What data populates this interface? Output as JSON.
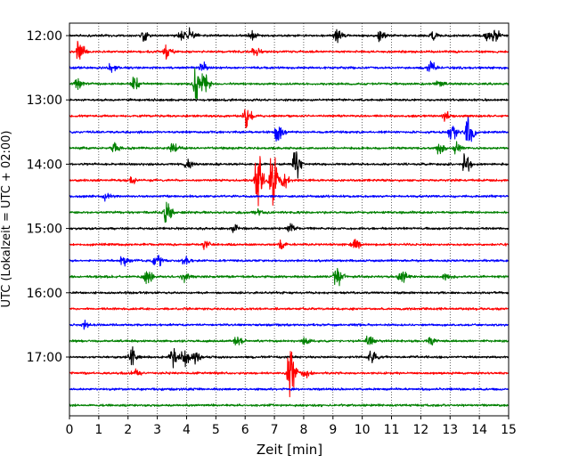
{
  "chart_data": {
    "type": "line",
    "title": "",
    "xlabel": "Zeit  [min]",
    "ylabel": "UTC (Lokalzeit = UTC + 02:00)",
    "xlim": [
      0,
      15
    ],
    "xticks": [
      "0",
      "1",
      "2",
      "3",
      "4",
      "5",
      "6",
      "7",
      "8",
      "9",
      "10",
      "11",
      "12",
      "13",
      "14",
      "15"
    ],
    "yticks": [
      {
        "label": "12:00",
        "row": 0
      },
      {
        "label": "13:00",
        "row": 4
      },
      {
        "label": "14:00",
        "row": 8
      },
      {
        "label": "15:00",
        "row": 12
      },
      {
        "label": "16:00",
        "row": 16
      },
      {
        "label": "17:00",
        "row": 20
      }
    ],
    "row_interval_min": 15,
    "grid": "vertical dotted lines at each minute",
    "color_cycle": [
      "#000000",
      "#ff0000",
      "#0000ff",
      "#008000"
    ],
    "rows": [
      {
        "start": "12:00",
        "color": "#000000",
        "events": [
          [
            2.5,
            0.5
          ],
          [
            3.8,
            0.4
          ],
          [
            4.1,
            0.4
          ],
          [
            6.2,
            0.4
          ],
          [
            9.1,
            0.6
          ],
          [
            10.6,
            0.4
          ],
          [
            12.4,
            0.4
          ],
          [
            14.2,
            0.4
          ],
          [
            14.5,
            0.5
          ]
        ]
      },
      {
        "start": "12:15",
        "color": "#ff0000",
        "events": [
          [
            0.3,
            0.9
          ],
          [
            3.3,
            0.6
          ],
          [
            6.3,
            0.4
          ]
        ]
      },
      {
        "start": "12:30",
        "color": "#0000ff",
        "events": [
          [
            1.4,
            0.4
          ],
          [
            4.5,
            0.4
          ],
          [
            12.3,
            0.5
          ]
        ]
      },
      {
        "start": "12:45",
        "color": "#008000",
        "events": [
          [
            0.2,
            0.4
          ],
          [
            2.2,
            0.6
          ],
          [
            4.3,
            1.3
          ],
          [
            4.6,
            0.8
          ],
          [
            12.6,
            0.3
          ]
        ]
      },
      {
        "start": "13:00",
        "color": "#000000",
        "events": []
      },
      {
        "start": "13:15",
        "color": "#ff0000",
        "events": [
          [
            6.0,
            1.0
          ],
          [
            12.8,
            0.4
          ]
        ]
      },
      {
        "start": "13:30",
        "color": "#0000ff",
        "events": [
          [
            7.1,
            1.0
          ],
          [
            13.0,
            1.0
          ],
          [
            13.6,
            1.5
          ]
        ]
      },
      {
        "start": "13:45",
        "color": "#008000",
        "events": [
          [
            1.5,
            0.4
          ],
          [
            3.5,
            0.4
          ],
          [
            12.6,
            0.5
          ],
          [
            13.2,
            0.4
          ]
        ]
      },
      {
        "start": "14:00",
        "color": "#000000",
        "events": [
          [
            4.0,
            0.4
          ],
          [
            7.7,
            1.2
          ],
          [
            13.5,
            0.8
          ]
        ]
      },
      {
        "start": "14:15",
        "color": "#ff0000",
        "events": [
          [
            6.4,
            2.4
          ],
          [
            6.9,
            2.2
          ],
          [
            7.3,
            0.6
          ],
          [
            2.1,
            0.3
          ]
        ]
      },
      {
        "start": "14:30",
        "color": "#0000ff",
        "events": [
          [
            1.2,
            0.3
          ]
        ]
      },
      {
        "start": "14:45",
        "color": "#008000",
        "events": [
          [
            3.3,
            0.9
          ],
          [
            6.4,
            0.3
          ]
        ]
      },
      {
        "start": "15:00",
        "color": "#000000",
        "events": [
          [
            5.6,
            0.3
          ],
          [
            7.5,
            0.3
          ]
        ]
      },
      {
        "start": "15:15",
        "color": "#ff0000",
        "events": [
          [
            4.6,
            0.3
          ],
          [
            7.2,
            0.4
          ],
          [
            9.7,
            0.5
          ]
        ]
      },
      {
        "start": "15:30",
        "color": "#0000ff",
        "events": [
          [
            1.8,
            0.4
          ],
          [
            2.9,
            0.3
          ],
          [
            3.0,
            0.3
          ],
          [
            3.9,
            0.4
          ]
        ]
      },
      {
        "start": "15:45",
        "color": "#008000",
        "events": [
          [
            2.6,
            0.6
          ],
          [
            3.9,
            0.3
          ],
          [
            9.1,
            1.0
          ],
          [
            11.3,
            0.7
          ],
          [
            12.8,
            0.3
          ]
        ]
      },
      {
        "start": "16:00",
        "color": "#000000",
        "events": []
      },
      {
        "start": "16:15",
        "color": "#ff0000",
        "events": []
      },
      {
        "start": "16:30",
        "color": "#0000ff",
        "events": [
          [
            0.5,
            0.3
          ]
        ]
      },
      {
        "start": "16:45",
        "color": "#008000",
        "events": [
          [
            5.7,
            0.4
          ],
          [
            8.0,
            0.3
          ],
          [
            10.2,
            0.5
          ],
          [
            12.3,
            0.3
          ]
        ]
      },
      {
        "start": "17:00",
        "color": "#000000",
        "events": [
          [
            2.1,
            0.8
          ],
          [
            3.5,
            1.0
          ],
          [
            3.9,
            0.8
          ],
          [
            4.3,
            0.4
          ],
          [
            10.3,
            0.5
          ]
        ]
      },
      {
        "start": "17:15",
        "color": "#ff0000",
        "events": [
          [
            7.5,
            1.9
          ],
          [
            2.2,
            0.3
          ],
          [
            8.0,
            0.3
          ]
        ]
      },
      {
        "start": "17:30",
        "color": "#0000ff",
        "events": []
      },
      {
        "start": "17:45",
        "color": "#008000",
        "events": []
      }
    ]
  }
}
